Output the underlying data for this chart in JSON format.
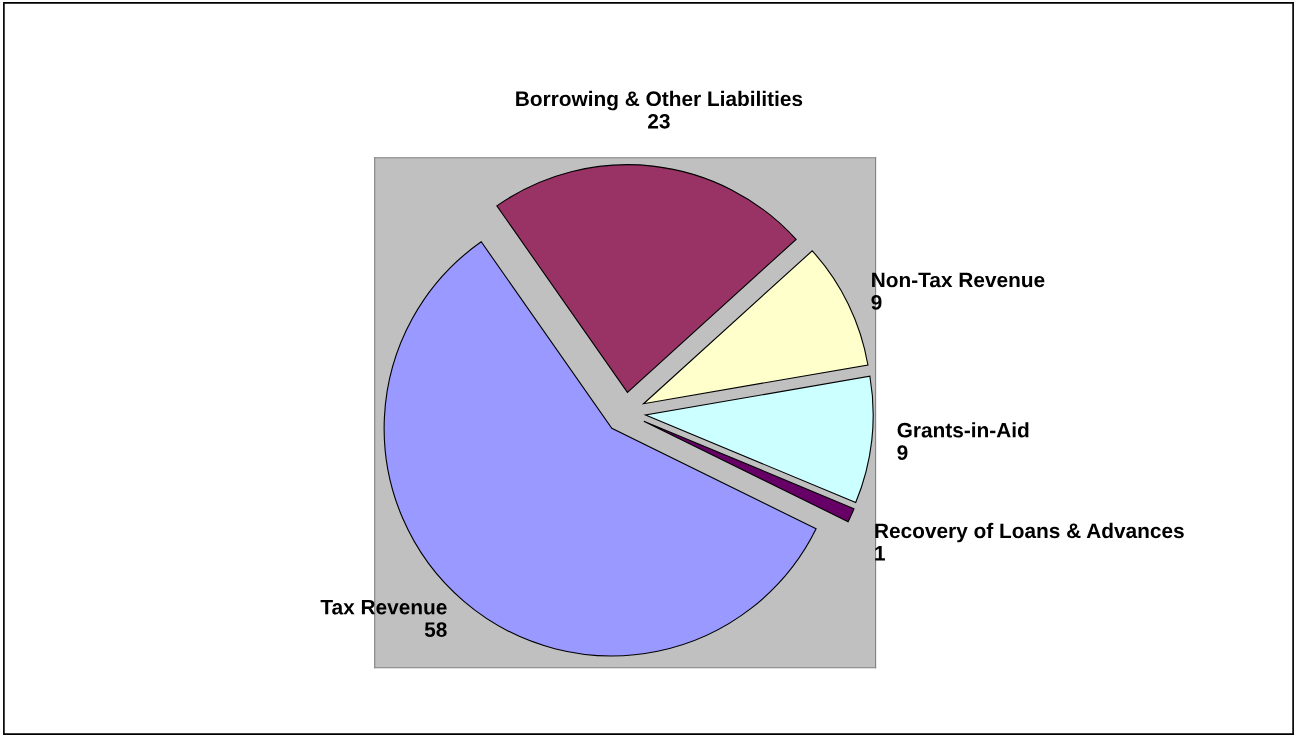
{
  "chart_data": {
    "type": "pie",
    "categories": [
      "Borrowing & Other Liabilities",
      "Non-Tax Revenue",
      "Grants-in-Aid",
      "Recovery of Loans & Advances",
      "Tax Revenue"
    ],
    "values": [
      23,
      9,
      9,
      1,
      58
    ],
    "colors": [
      "#993366",
      "#ffffcc",
      "#ccffff",
      "#660066",
      "#9999ff"
    ],
    "data_labels": true,
    "legend": false
  }
}
